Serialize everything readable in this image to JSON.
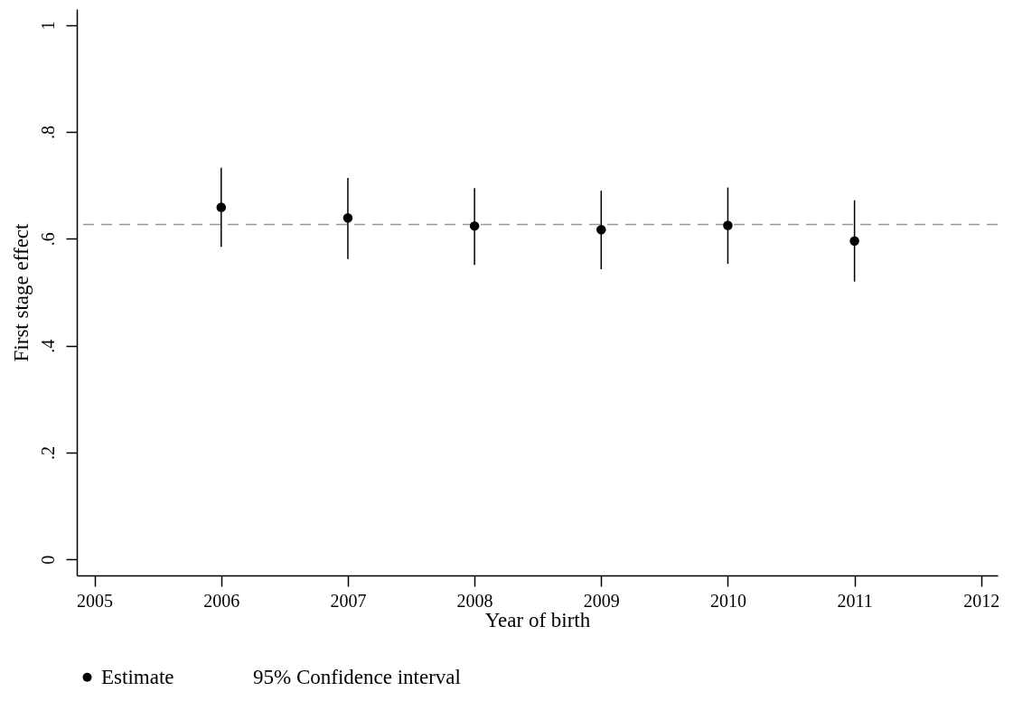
{
  "chart_data": {
    "type": "scatter",
    "xlabel": "Year of birth",
    "ylabel": "First stage effect",
    "x": [
      2006,
      2007,
      2008,
      2009,
      2010,
      2011
    ],
    "series": [
      {
        "name": "Estimate",
        "color": "#000000",
        "values": [
          0.659,
          0.639,
          0.624,
          0.617,
          0.625,
          0.596
        ],
        "errors": [
          [
            0.585,
            0.733
          ],
          [
            0.562,
            0.714
          ],
          [
            0.551,
            0.695
          ],
          [
            0.543,
            0.69
          ],
          [
            0.553,
            0.696
          ],
          [
            0.52,
            0.672
          ]
        ]
      }
    ],
    "annotations": [
      "95% Confidence interval"
    ],
    "xlim": [
      2004.86,
      2012.13
    ],
    "xticks": [
      2005,
      2006,
      2007,
      2008,
      2009,
      2010,
      2011,
      2012
    ],
    "ylim": [
      -0.03,
      1.03
    ],
    "yticks": [
      0,
      {
        "value": 0.2,
        "label": ".2"
      },
      {
        "value": 0.4,
        "label": ".4"
      },
      {
        "value": 0.6,
        "label": ".6"
      },
      {
        "value": 0.8,
        "label": ".8"
      },
      1
    ],
    "ref_lines": [
      {
        "axis": "y",
        "value": 0.627,
        "color": "#999999",
        "line_style": "dashed"
      }
    ],
    "marker": "circle",
    "grid": false,
    "legend": "bottom"
  }
}
